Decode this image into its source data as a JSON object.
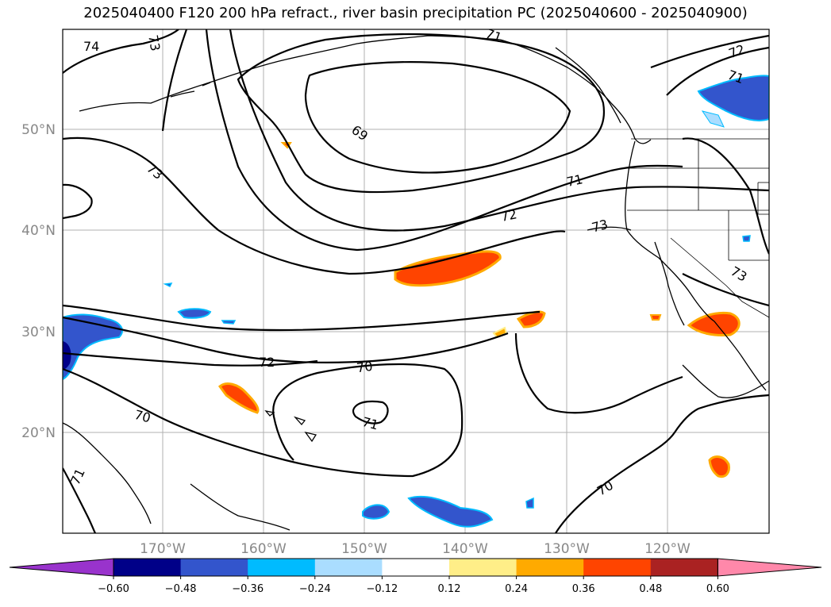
{
  "title": "2025040400 F120 200 hPa refract., river basin precipitation PC (2025040600 - 2025040900)",
  "map": {
    "lat_labels": [
      "50°N",
      "40°N",
      "30°N",
      "20°N"
    ],
    "lon_labels": [
      "170°W",
      "160°W",
      "150°W",
      "140°W",
      "130°W",
      "120°W"
    ],
    "contour_labels": [
      "74",
      "73",
      "73",
      "69",
      "71",
      "72",
      "73",
      "73",
      "71",
      "72",
      "71",
      "72",
      "70",
      "71",
      "70",
      "71",
      "70"
    ]
  },
  "colorbar": {
    "colors": [
      "#9933cc",
      "#000088",
      "#3355cc",
      "#00bbff",
      "#aaddff",
      "#ffffff",
      "#ffee88",
      "#ffaa00",
      "#ff4400",
      "#aa2222",
      "#ff88aa"
    ],
    "tick_labels": [
      "−0.60",
      "−0.48",
      "−0.36",
      "−0.24",
      "−0.12",
      "0.12",
      "0.24",
      "0.36",
      "0.48",
      "0.60"
    ]
  }
}
